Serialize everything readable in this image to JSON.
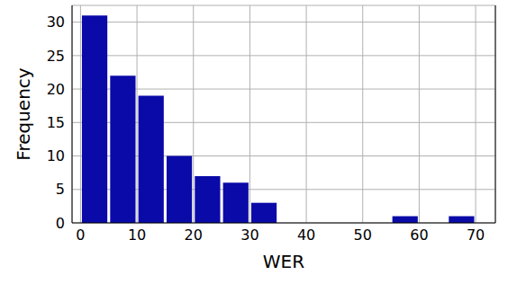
{
  "chart_data": {
    "type": "histogram",
    "x_label": "WER",
    "y_label": "Frequency",
    "bins": [
      0,
      5,
      10,
      15,
      20,
      25,
      30,
      35,
      40,
      45,
      50,
      55,
      60,
      65,
      70
    ],
    "counts": [
      31,
      22,
      19,
      10,
      7,
      6,
      3,
      0,
      0,
      0,
      0,
      1,
      0,
      1
    ],
    "color": "#0a0aa8",
    "xlim": [
      -1.5,
      73.5
    ],
    "ylim": [
      0,
      32.5
    ],
    "xticks": [
      0,
      10,
      20,
      30,
      40,
      50,
      60,
      70
    ],
    "yticks": [
      0,
      5,
      10,
      15,
      20,
      25,
      30
    ],
    "grid": true
  }
}
